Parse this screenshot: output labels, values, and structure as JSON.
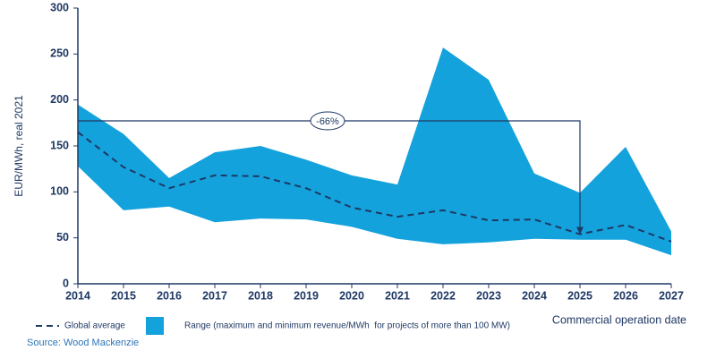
{
  "chart_data": {
    "type": "range-line",
    "x": [
      2014,
      2015,
      2016,
      2017,
      2018,
      2019,
      2020,
      2021,
      2022,
      2023,
      2024,
      2025,
      2026,
      2027
    ],
    "xlim": [
      2014,
      2027
    ],
    "xticks": [
      2014,
      2015,
      2016,
      2017,
      2018,
      2019,
      2020,
      2021,
      2022,
      2023,
      2024,
      2025,
      2026,
      2027
    ],
    "x_label": "Commercial operation date",
    "y_label": "EUR/MWh, real 2021",
    "ylim": [
      0,
      300
    ],
    "yticks": [
      0,
      50,
      100,
      150,
      200,
      250,
      300
    ],
    "series": [
      {
        "name": "Global average",
        "color": "#1f3864",
        "style": "dashed",
        "values": [
          165,
          127,
          104,
          118,
          117,
          104,
          83,
          73,
          80,
          69,
          70,
          54,
          64,
          46
        ]
      },
      {
        "name": "Range (maximum and minimum revenue/MWh  for projects of more than 100 MW)",
        "color": "#14a2dc",
        "high": [
          195,
          163,
          115,
          143,
          150,
          135,
          118,
          108,
          257,
          222,
          120,
          99,
          149,
          57
        ],
        "low": [
          128,
          80,
          84,
          67,
          71,
          70,
          62,
          49,
          43,
          45,
          49,
          48,
          48,
          31
        ]
      }
    ],
    "annotation": "-66%",
    "source": "Source: Wood Mackenzie"
  }
}
